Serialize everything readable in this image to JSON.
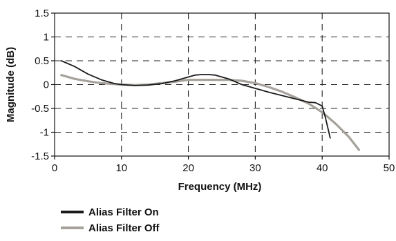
{
  "chart_data": {
    "type": "line",
    "title": "",
    "xlabel": "Frequency (MHz)",
    "ylabel": "Magnitude (dB)",
    "xlim": [
      0,
      50
    ],
    "ylim": [
      -1.5,
      1.5
    ],
    "x_ticks": [
      0,
      10,
      20,
      30,
      40,
      50
    ],
    "x_tick_labels": [
      "0",
      "10",
      "20",
      "30",
      "40",
      "50"
    ],
    "y_ticks": [
      1.5,
      1,
      0.5,
      0,
      -0.5,
      -1,
      -1.5
    ],
    "y_tick_labels": [
      "1.5",
      "1",
      "0.5",
      "0",
      "-0.5",
      "-1",
      "-1.5"
    ],
    "grid": true,
    "legend_position": "bottom-left",
    "series": [
      {
        "name": "Alias Filter On",
        "color": "#1a1a1a",
        "x": [
          1,
          3,
          5,
          7,
          9,
          10,
          12,
          14,
          16,
          18,
          20,
          21,
          22,
          23,
          24,
          26,
          28,
          30,
          32,
          34,
          36,
          38,
          39,
          40,
          40.5,
          41.2
        ],
        "y": [
          0.5,
          0.38,
          0.22,
          0.1,
          0.02,
          0,
          -0.02,
          -0.01,
          0.02,
          0.08,
          0.16,
          0.2,
          0.21,
          0.21,
          0.2,
          0.12,
          0,
          -0.08,
          -0.16,
          -0.23,
          -0.3,
          -0.37,
          -0.38,
          -0.45,
          -0.7,
          -1.12
        ]
      },
      {
        "name": "Alias Filter Off",
        "color": "#a6a19b",
        "x": [
          1,
          3,
          5,
          7,
          9,
          10,
          12,
          14,
          16,
          18,
          20,
          22,
          24,
          26,
          28,
          30,
          32,
          34,
          36,
          38,
          40,
          42,
          44,
          45.5
        ],
        "y": [
          0.2,
          0.12,
          0.07,
          0.03,
          0.01,
          0,
          -0.01,
          0,
          0.03,
          0.06,
          0.1,
          0.1,
          0.1,
          0.1,
          0.08,
          0.03,
          -0.05,
          -0.15,
          -0.27,
          -0.4,
          -0.58,
          -0.82,
          -1.1,
          -1.37
        ]
      }
    ]
  }
}
